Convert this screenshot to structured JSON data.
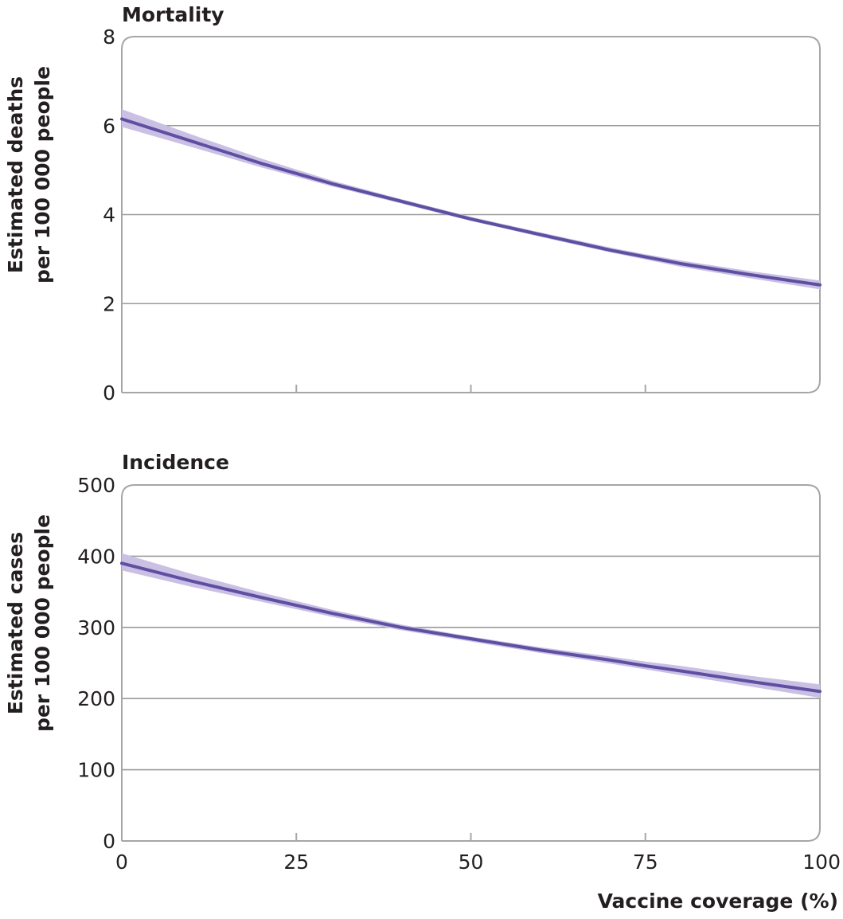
{
  "colors": {
    "line": "#5e4fa2",
    "band": "#c9c0e4",
    "grid": "#9a9a9a",
    "frame": "#a6a6a6",
    "text": "#231f20"
  },
  "chart_data": [
    {
      "type": "line",
      "title": "Mortality",
      "ylabel_line1": "Estimated deaths",
      "ylabel_line2": "per 100 000 people",
      "xlim": [
        0,
        100
      ],
      "ylim": [
        0,
        8
      ],
      "yticks": [
        0,
        2,
        4,
        6,
        8
      ],
      "xticks": [
        0,
        25,
        50,
        75,
        100
      ],
      "show_x_tick_labels": false,
      "grid": true,
      "series": [
        {
          "x": [
            0,
            10,
            20,
            30,
            40,
            50,
            60,
            70,
            75,
            80,
            90,
            100
          ],
          "y": [
            6.15,
            5.65,
            5.15,
            4.7,
            4.3,
            3.9,
            3.55,
            3.2,
            3.05,
            2.9,
            2.65,
            2.42
          ],
          "lower": [
            5.97,
            5.52,
            5.06,
            4.64,
            4.25,
            3.86,
            3.5,
            3.15,
            2.99,
            2.83,
            2.57,
            2.32
          ],
          "upper": [
            6.37,
            5.8,
            5.26,
            4.77,
            4.35,
            3.95,
            3.6,
            3.26,
            3.11,
            2.97,
            2.73,
            2.52
          ]
        }
      ]
    },
    {
      "type": "line",
      "title": "Incidence",
      "ylabel_line1": "Estimated cases",
      "ylabel_line2": "per 100 000 people",
      "xlabel": "Vaccine coverage (%)",
      "xlim": [
        0,
        100
      ],
      "ylim": [
        0,
        500
      ],
      "yticks": [
        0,
        100,
        200,
        300,
        400,
        500
      ],
      "xticks": [
        0,
        25,
        50,
        75,
        100
      ],
      "show_x_tick_labels": true,
      "grid": true,
      "series": [
        {
          "x": [
            0,
            10,
            20,
            30,
            40,
            50,
            60,
            70,
            75,
            80,
            90,
            100
          ],
          "y": [
            390,
            365,
            342,
            320,
            300,
            284,
            268,
            254,
            246,
            239,
            224,
            210
          ],
          "lower": [
            380,
            357,
            336,
            315,
            296,
            280,
            264,
            249,
            241,
            233,
            217,
            201
          ],
          "upper": [
            404,
            375,
            349,
            325,
            304,
            287,
            272,
            259,
            252,
            246,
            232,
            220
          ]
        }
      ]
    }
  ]
}
